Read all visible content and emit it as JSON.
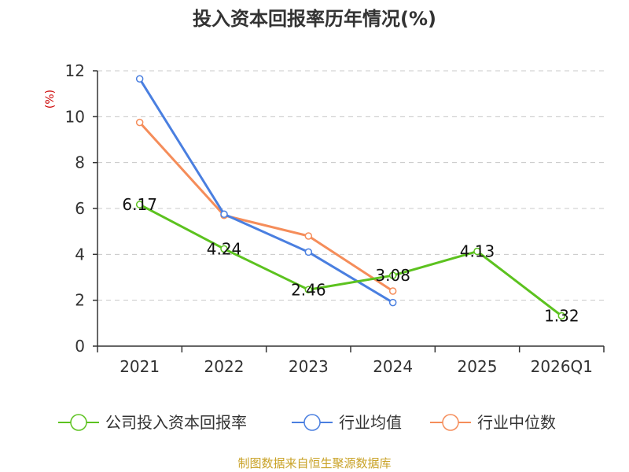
{
  "chart_data": {
    "type": "line",
    "title": "投入资本回报率历年情况(%)",
    "ylabel": "(%)",
    "xlabel": "",
    "ylim": [
      0,
      12
    ],
    "yticks": [
      0,
      2,
      4,
      6,
      8,
      10,
      12
    ],
    "categories": [
      "2021",
      "2022",
      "2023",
      "2024",
      "2025",
      "2026Q1"
    ],
    "grid": true,
    "legend_position": "bottom",
    "series": [
      {
        "name": "公司投入资本回报率",
        "color": "#5cc21f",
        "values": [
          6.17,
          4.24,
          2.46,
          3.08,
          4.13,
          1.32
        ],
        "labels": [
          "6.17",
          "4.24",
          "2.46",
          "3.08",
          "4.13",
          "1.32"
        ]
      },
      {
        "name": "行业均值",
        "color": "#4a7fe0",
        "values": [
          11.65,
          5.75,
          4.1,
          1.9,
          null,
          null
        ]
      },
      {
        "name": "行业中位数",
        "color": "#f58d5a",
        "values": [
          9.75,
          5.7,
          4.8,
          2.4,
          null,
          null
        ]
      }
    ]
  },
  "ylabel_color": "#cc0000",
  "source": {
    "text": "制图数据来自恒生聚源数据库",
    "color": "#c9a227"
  }
}
